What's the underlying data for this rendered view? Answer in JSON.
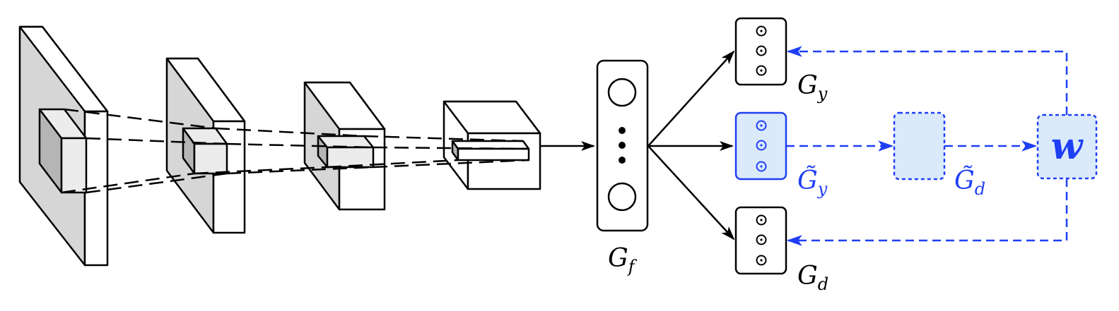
{
  "labels": {
    "gf": {
      "main": "G",
      "sub": "f"
    },
    "gy": {
      "main": "G",
      "sub": "y"
    },
    "gd": {
      "main": "G",
      "sub": "d"
    },
    "gy_tilde": {
      "main": "G̃",
      "sub": "y"
    },
    "gd_tilde": {
      "main": "G̃",
      "sub": "d"
    },
    "w": "w"
  },
  "colors": {
    "stroke": "#000000",
    "blue": "#1f3ff5",
    "blue_fill": "#dbeafb",
    "gray_face": "#d6d6d6",
    "dark_gray_face": "#b5b5b5",
    "light_face": "#ececec",
    "white": "#ffffff"
  }
}
